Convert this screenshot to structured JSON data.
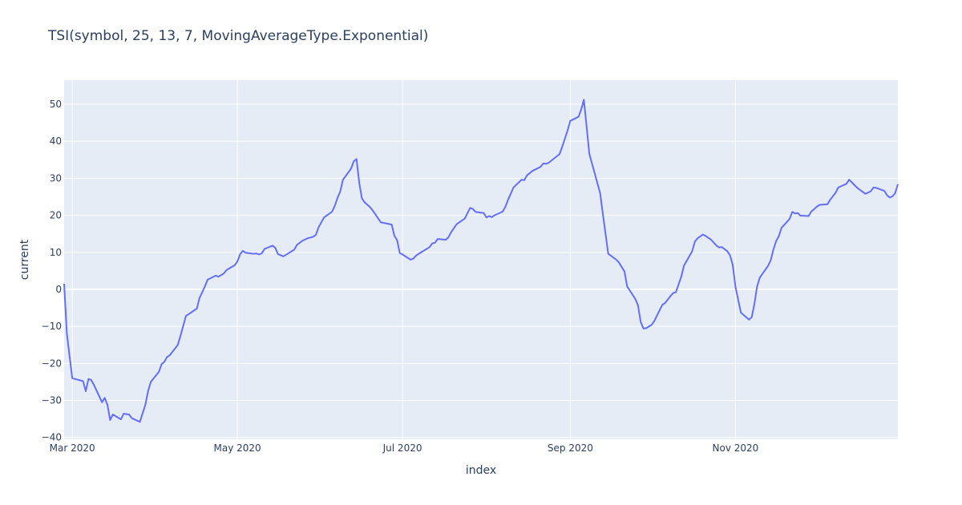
{
  "chart_data": {
    "type": "line",
    "title": "TSI(symbol, 25, 13, 7, MovingAverageType.Exponential)",
    "xlabel": "index",
    "ylabel": "current",
    "x_range": [
      "2020-02-27",
      "2020-12-31"
    ],
    "ylim": [
      -40.5,
      56.5
    ],
    "grid": true,
    "legend": "none",
    "colors": {
      "plot_background": "#e5ecf6",
      "grid": "#ffffff",
      "line": "#636efa",
      "text": "#2a3f5f"
    },
    "x_ticks": [
      {
        "date": "2020-03-01",
        "label": "Mar 2020"
      },
      {
        "date": "2020-05-01",
        "label": "May 2020"
      },
      {
        "date": "2020-07-01",
        "label": "Jul 2020"
      },
      {
        "date": "2020-09-01",
        "label": "Sep 2020"
      },
      {
        "date": "2020-11-01",
        "label": "Nov 2020"
      }
    ],
    "y_ticks": [
      {
        "value": -40,
        "label": "−40"
      },
      {
        "value": -30,
        "label": "−30"
      },
      {
        "value": -20,
        "label": "−20"
      },
      {
        "value": -10,
        "label": "−10"
      },
      {
        "value": 0,
        "label": "0"
      },
      {
        "value": 10,
        "label": "10"
      },
      {
        "value": 20,
        "label": "20"
      },
      {
        "value": 30,
        "label": "30"
      },
      {
        "value": 40,
        "label": "40"
      },
      {
        "value": 50,
        "label": "50"
      }
    ],
    "series": [
      {
        "values": [
          [
            "2020-02-27",
            1.5
          ],
          [
            "2020-02-28",
            -12
          ],
          [
            "2020-03-01",
            -24
          ],
          [
            "2020-03-05",
            -24.8
          ],
          [
            "2020-03-06",
            -27.5
          ],
          [
            "2020-03-07",
            -24.2
          ],
          [
            "2020-03-08",
            -24.5
          ],
          [
            "2020-03-09",
            -25.8
          ],
          [
            "2020-03-12",
            -30.5
          ],
          [
            "2020-03-13",
            -29.3
          ],
          [
            "2020-03-14",
            -31.2
          ],
          [
            "2020-03-15",
            -35.3
          ],
          [
            "2020-03-16",
            -33.8
          ],
          [
            "2020-03-19",
            -35.1
          ],
          [
            "2020-03-20",
            -33.6
          ],
          [
            "2020-03-22",
            -33.8
          ],
          [
            "2020-03-23",
            -34.8
          ],
          [
            "2020-03-26",
            -35.8
          ],
          [
            "2020-03-28",
            -31.2
          ],
          [
            "2020-03-29",
            -27.5
          ],
          [
            "2020-03-30",
            -25.0
          ],
          [
            "2020-04-02",
            -22.3
          ],
          [
            "2020-04-03",
            -20.2
          ],
          [
            "2020-04-04",
            -19.6
          ],
          [
            "2020-04-05",
            -18.3
          ],
          [
            "2020-04-06",
            -17.8
          ],
          [
            "2020-04-09",
            -15.0
          ],
          [
            "2020-04-10",
            -12.5
          ],
          [
            "2020-04-12",
            -7.2
          ],
          [
            "2020-04-16",
            -5.2
          ],
          [
            "2020-04-17",
            -2.4
          ],
          [
            "2020-04-19",
            0.8
          ],
          [
            "2020-04-20",
            2.6
          ],
          [
            "2020-04-23",
            3.7
          ],
          [
            "2020-04-24",
            3.4
          ],
          [
            "2020-04-26",
            4.3
          ],
          [
            "2020-04-27",
            5.2
          ],
          [
            "2020-04-30",
            6.5
          ],
          [
            "2020-05-01",
            7.5
          ],
          [
            "2020-05-02",
            9.5
          ],
          [
            "2020-05-03",
            10.4
          ],
          [
            "2020-05-04",
            9.9
          ],
          [
            "2020-05-07",
            9.6
          ],
          [
            "2020-05-08",
            9.7
          ],
          [
            "2020-05-09",
            9.4
          ],
          [
            "2020-05-10",
            9.7
          ],
          [
            "2020-05-11",
            10.9
          ],
          [
            "2020-05-14",
            11.8
          ],
          [
            "2020-05-15",
            11.2
          ],
          [
            "2020-05-16",
            9.5
          ],
          [
            "2020-05-18",
            8.9
          ],
          [
            "2020-05-20",
            9.8
          ],
          [
            "2020-05-22",
            10.7
          ],
          [
            "2020-05-23",
            12.0
          ],
          [
            "2020-05-25",
            13.1
          ],
          [
            "2020-05-27",
            13.8
          ],
          [
            "2020-05-29",
            14.2
          ],
          [
            "2020-05-30",
            14.7
          ],
          [
            "2020-05-31",
            16.8
          ],
          [
            "2020-06-02",
            19.4
          ],
          [
            "2020-06-05",
            21.0
          ],
          [
            "2020-06-06",
            22.6
          ],
          [
            "2020-06-07",
            24.7
          ],
          [
            "2020-06-08",
            26.4
          ],
          [
            "2020-06-09",
            29.6
          ],
          [
            "2020-06-10",
            30.6
          ],
          [
            "2020-06-12",
            32.6
          ],
          [
            "2020-06-13",
            34.6
          ],
          [
            "2020-06-14",
            35.2
          ],
          [
            "2020-06-15",
            28.8
          ],
          [
            "2020-06-16",
            24.6
          ],
          [
            "2020-06-17",
            23.5
          ],
          [
            "2020-06-19",
            22.2
          ],
          [
            "2020-06-20",
            21.3
          ],
          [
            "2020-06-23",
            18.1
          ],
          [
            "2020-06-27",
            17.5
          ],
          [
            "2020-06-28",
            14.5
          ],
          [
            "2020-06-29",
            13.3
          ],
          [
            "2020-06-30",
            9.8
          ],
          [
            "2020-07-01",
            9.4
          ],
          [
            "2020-07-04",
            8.0
          ],
          [
            "2020-07-05",
            8.3
          ],
          [
            "2020-07-06",
            9.1
          ],
          [
            "2020-07-07",
            9.6
          ],
          [
            "2020-07-11",
            11.4
          ],
          [
            "2020-07-12",
            12.4
          ],
          [
            "2020-07-13",
            12.6
          ],
          [
            "2020-07-14",
            13.6
          ],
          [
            "2020-07-17",
            13.4
          ],
          [
            "2020-07-18",
            14.1
          ],
          [
            "2020-07-19",
            15.5
          ],
          [
            "2020-07-20",
            16.5
          ],
          [
            "2020-07-21",
            17.6
          ],
          [
            "2020-07-24",
            19.1
          ],
          [
            "2020-07-26",
            22.0
          ],
          [
            "2020-07-27",
            21.7
          ],
          [
            "2020-07-28",
            20.9
          ],
          [
            "2020-07-31",
            20.6
          ],
          [
            "2020-08-01",
            19.4
          ],
          [
            "2020-08-02",
            19.8
          ],
          [
            "2020-08-03",
            19.5
          ],
          [
            "2020-08-04",
            20.0
          ],
          [
            "2020-08-07",
            21.0
          ],
          [
            "2020-08-08",
            22.3
          ],
          [
            "2020-08-09",
            24.2
          ],
          [
            "2020-08-11",
            27.5
          ],
          [
            "2020-08-14",
            29.6
          ],
          [
            "2020-08-15",
            29.5
          ],
          [
            "2020-08-16",
            30.8
          ],
          [
            "2020-08-18",
            32.0
          ],
          [
            "2020-08-21",
            33.1
          ],
          [
            "2020-08-22",
            34.0
          ],
          [
            "2020-08-23",
            33.9
          ],
          [
            "2020-08-24",
            34.2
          ],
          [
            "2020-08-28",
            36.5
          ],
          [
            "2020-08-29",
            38.5
          ],
          [
            "2020-08-31",
            43.0
          ],
          [
            "2020-09-01",
            45.5
          ],
          [
            "2020-09-04",
            46.6
          ],
          [
            "2020-09-05",
            48.5
          ],
          [
            "2020-09-06",
            51.2
          ],
          [
            "2020-09-07",
            44.0
          ],
          [
            "2020-09-08",
            36.6
          ],
          [
            "2020-09-09",
            34.0
          ],
          [
            "2020-09-12",
            26.0
          ],
          [
            "2020-09-13",
            20.5
          ],
          [
            "2020-09-15",
            9.6
          ],
          [
            "2020-09-18",
            8.0
          ],
          [
            "2020-09-19",
            7.2
          ],
          [
            "2020-09-21",
            4.8
          ],
          [
            "2020-09-22",
            0.8
          ],
          [
            "2020-09-25",
            -2.6
          ],
          [
            "2020-09-26",
            -4.3
          ],
          [
            "2020-09-27",
            -8.8
          ],
          [
            "2020-09-28",
            -10.6
          ],
          [
            "2020-09-29",
            -10.5
          ],
          [
            "2020-10-01",
            -9.6
          ],
          [
            "2020-10-02",
            -8.6
          ],
          [
            "2020-10-03",
            -7.1
          ],
          [
            "2020-10-05",
            -4.2
          ],
          [
            "2020-10-06",
            -3.7
          ],
          [
            "2020-10-08",
            -1.8
          ],
          [
            "2020-10-09",
            -1.0
          ],
          [
            "2020-10-10",
            -0.8
          ],
          [
            "2020-10-12",
            3.5
          ],
          [
            "2020-10-13",
            6.4
          ],
          [
            "2020-10-16",
            10.3
          ],
          [
            "2020-10-17",
            12.9
          ],
          [
            "2020-10-18",
            13.8
          ],
          [
            "2020-10-20",
            14.8
          ],
          [
            "2020-10-21",
            14.4
          ],
          [
            "2020-10-23",
            13.4
          ],
          [
            "2020-10-25",
            11.8
          ],
          [
            "2020-10-26",
            11.3
          ],
          [
            "2020-10-27",
            11.4
          ],
          [
            "2020-10-29",
            10.3
          ],
          [
            "2020-10-30",
            9.2
          ],
          [
            "2020-10-31",
            6.6
          ],
          [
            "2020-11-01",
            0.7
          ],
          [
            "2020-11-02",
            -2.8
          ],
          [
            "2020-11-03",
            -6.3
          ],
          [
            "2020-11-06",
            -8.2
          ],
          [
            "2020-11-07",
            -7.5
          ],
          [
            "2020-11-08",
            -4.0
          ],
          [
            "2020-11-09",
            0.8
          ],
          [
            "2020-11-10",
            3.2
          ],
          [
            "2020-11-13",
            6.3
          ],
          [
            "2020-11-14",
            7.8
          ],
          [
            "2020-11-15",
            10.7
          ],
          [
            "2020-11-16",
            13.0
          ],
          [
            "2020-11-17",
            14.3
          ],
          [
            "2020-11-18",
            16.6
          ],
          [
            "2020-11-21",
            19.0
          ],
          [
            "2020-11-22",
            20.9
          ],
          [
            "2020-11-23",
            20.5
          ],
          [
            "2020-11-24",
            20.6
          ],
          [
            "2020-11-25",
            19.9
          ],
          [
            "2020-11-28",
            19.8
          ],
          [
            "2020-11-29",
            21.0
          ],
          [
            "2020-11-30",
            21.6
          ],
          [
            "2020-12-01",
            22.3
          ],
          [
            "2020-12-02",
            22.8
          ],
          [
            "2020-12-05",
            23.0
          ],
          [
            "2020-12-06",
            24.2
          ],
          [
            "2020-12-08",
            26.1
          ],
          [
            "2020-12-09",
            27.5
          ],
          [
            "2020-12-12",
            28.5
          ],
          [
            "2020-12-13",
            29.6
          ],
          [
            "2020-12-14",
            28.9
          ],
          [
            "2020-12-16",
            27.4
          ],
          [
            "2020-12-19",
            25.8
          ],
          [
            "2020-12-21",
            26.5
          ],
          [
            "2020-12-22",
            27.5
          ],
          [
            "2020-12-23",
            27.4
          ],
          [
            "2020-12-26",
            26.6
          ],
          [
            "2020-12-27",
            25.4
          ],
          [
            "2020-12-28",
            24.8
          ],
          [
            "2020-12-29",
            25.1
          ],
          [
            "2020-12-30",
            26.0
          ],
          [
            "2020-12-31",
            28.4
          ]
        ]
      }
    ]
  }
}
